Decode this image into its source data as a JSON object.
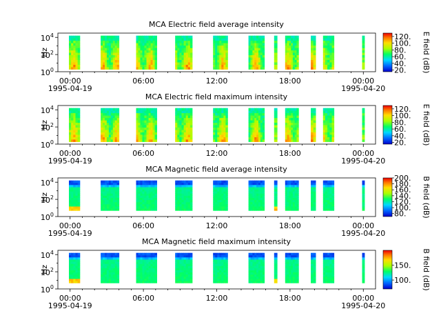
{
  "chart_data": [
    {
      "type": "heatmap",
      "title": "MCA  Electric field average intensity",
      "ylabel": "Hz",
      "y_scale": "log",
      "y_tick_labels": [
        "10^0",
        "10^2",
        "10^4"
      ],
      "ylim_exponent": [
        0,
        4.5
      ],
      "colorbar_label": "E field (dB)",
      "colorbar_range": [
        15,
        130
      ],
      "colorbar_ticks": [
        "20.",
        "40.",
        "60.",
        "80.",
        "100.",
        "120."
      ],
      "colormap": "rainbow",
      "dominant_level": 60
    },
    {
      "type": "heatmap",
      "title": "MCA  Electric field maximum intensity",
      "ylabel": "Hz",
      "y_scale": "log",
      "y_tick_labels": [
        "10^0",
        "10^2",
        "10^4"
      ],
      "ylim_exponent": [
        0,
        4.5
      ],
      "colorbar_label": "E field (dB)",
      "colorbar_range": [
        15,
        130
      ],
      "colorbar_ticks": [
        "20.",
        "40.",
        "60.",
        "80.",
        "100.",
        "120."
      ],
      "colormap": "rainbow",
      "dominant_level": 65
    },
    {
      "type": "heatmap",
      "title": "MCA  Magnetic field average intensity",
      "ylabel": "Hz",
      "y_scale": "log",
      "y_tick_labels": [
        "10^0",
        "10^2",
        "10^4"
      ],
      "ylim_exponent": [
        0,
        4.5
      ],
      "colorbar_label": "B field (dB)",
      "colorbar_range": [
        70,
        200
      ],
      "colorbar_ticks": [
        "80.",
        "100.",
        "120.",
        "140.",
        "160.",
        "180.",
        "200."
      ],
      "colormap": "rainbow",
      "dominant_level": 125
    },
    {
      "type": "heatmap",
      "title": "MCA  Magnetic field maximum intensity",
      "ylabel": "Hz",
      "y_scale": "log",
      "y_tick_labels": [
        "10^0",
        "10^2",
        "10^4"
      ],
      "ylim_exponent": [
        0,
        4.5
      ],
      "colorbar_label": "B field (dB)",
      "colorbar_range": [
        70,
        200
      ],
      "colorbar_ticks": [
        "100.",
        "150."
      ],
      "colormap": "rainbow",
      "dominant_level": 130
    }
  ],
  "time_axis": {
    "range_hours": [
      -1,
      25
    ],
    "tick_labels": [
      {
        "hour": 0,
        "label": "00:00"
      },
      {
        "hour": 6,
        "label": "06:00"
      },
      {
        "hour": 12,
        "label": "12:00"
      },
      {
        "hour": 18,
        "label": "18:00"
      },
      {
        "hour": 24,
        "label": "00:00"
      }
    ],
    "date_labels": [
      {
        "hour": 0,
        "label": "1995-04-19"
      },
      {
        "hour": 24,
        "label": "1995-04-20"
      }
    ]
  },
  "data_intervals_hours": [
    [
      -0.1,
      0.8
    ],
    [
      2.5,
      4.0
    ],
    [
      5.4,
      7.1
    ],
    [
      8.6,
      10.0
    ],
    [
      11.7,
      12.9
    ],
    [
      14.6,
      15.9
    ],
    [
      16.7,
      16.95
    ],
    [
      17.6,
      18.7
    ],
    [
      19.7,
      20.1
    ],
    [
      20.7,
      21.6
    ],
    [
      23.9,
      24.1
    ]
  ]
}
